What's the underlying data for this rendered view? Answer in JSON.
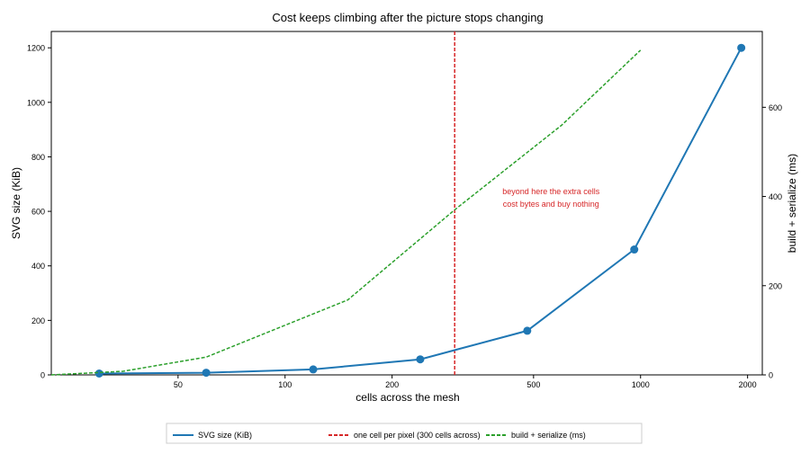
{
  "chart_data": {
    "type": "line",
    "title": "Cost keeps climbing after the picture stops changing",
    "xlabel": "cells across the mesh",
    "ylabel": "SVG size (KiB)",
    "y2label": "build + serialize (ms)",
    "xscale": "log",
    "xlim": [
      22,
      2200
    ],
    "ylim": [
      0,
      1260
    ],
    "y2lim": [
      0,
      770
    ],
    "xticks": [
      50,
      100,
      200,
      500,
      1000,
      2000
    ],
    "yticks": [
      0,
      200,
      400,
      600,
      800,
      1000,
      1200
    ],
    "y2ticks": [
      0,
      200,
      400,
      600
    ],
    "grid": false,
    "legend_position": "bottom-center",
    "series": [
      {
        "name": "SVG size (KiB)",
        "axis": "left",
        "color": "#1f77b4",
        "style": "solid",
        "markers": true,
        "x": [
          30,
          60,
          120,
          240,
          480,
          960,
          1920
        ],
        "y": [
          5,
          8,
          20,
          57,
          162,
          460,
          1200
        ]
      },
      {
        "name": "build + serialize (ms)",
        "axis": "right",
        "color": "#2ca02c",
        "style": "dashed",
        "markers": false,
        "x": [
          22,
          35,
          60,
          150,
          300,
          600,
          1000
        ],
        "y": [
          0,
          8,
          40,
          168,
          370,
          560,
          728
        ]
      }
    ],
    "vline": {
      "name": "one cell per pixel (300 cells across)",
      "x": 300,
      "color": "#d62728",
      "style": "dashed"
    },
    "annotation": {
      "lines": [
        "beyond here the extra cells",
        "cost bytes and buy nothing"
      ],
      "color": "#d62728",
      "x": 560,
      "y": 630
    }
  }
}
